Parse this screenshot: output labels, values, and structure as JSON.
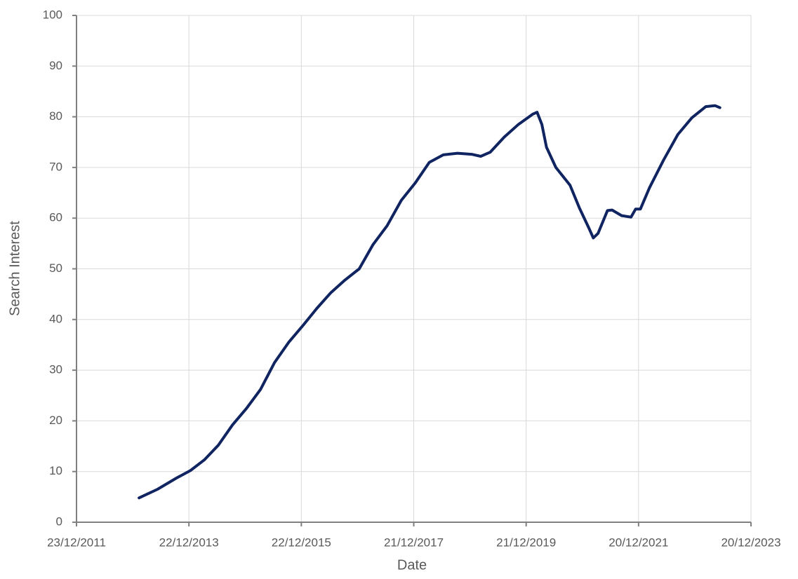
{
  "chart_data": {
    "type": "line",
    "x_label": "Date",
    "y_label": "Search Interest",
    "x": [
      "2013-02-01",
      "2013-06-01",
      "2013-10-01",
      "2014-01-01",
      "2014-04-01",
      "2014-07-01",
      "2014-10-01",
      "2015-01-01",
      "2015-04-01",
      "2015-07-01",
      "2015-10-01",
      "2016-01-01",
      "2016-04-01",
      "2016-07-01",
      "2016-10-01",
      "2017-01-01",
      "2017-04-01",
      "2017-07-01",
      "2017-10-01",
      "2018-01-01",
      "2018-04-01",
      "2018-07-01",
      "2018-10-01",
      "2019-01-01",
      "2019-03-01",
      "2019-05-01",
      "2019-08-01",
      "2019-11-01",
      "2020-02-01",
      "2020-03-01",
      "2020-04-01",
      "2020-05-01",
      "2020-07-01",
      "2020-10-01",
      "2020-12-01",
      "2021-02-01",
      "2021-03-01",
      "2021-04-01",
      "2021-06-01",
      "2021-07-01",
      "2021-09-01",
      "2021-11-01",
      "2021-12-01",
      "2022-01-01",
      "2022-03-01",
      "2022-06-01",
      "2022-09-01",
      "2022-12-01",
      "2023-03-01",
      "2023-05-01",
      "2023-06-01"
    ],
    "series": [
      {
        "name": "Search Interest",
        "color": "#0f2460",
        "values": [
          4.8,
          6.5,
          8.7,
          10.2,
          12.3,
          15.2,
          19.2,
          22.5,
          26.2,
          31.5,
          35.5,
          38.8,
          42.2,
          45.3,
          47.8,
          50,
          54.8,
          58.5,
          63.5,
          67,
          71,
          72.5,
          72.8,
          72.6,
          72.2,
          73,
          76,
          78.5,
          80.5,
          80.9,
          78.5,
          74,
          70,
          66.5,
          62,
          58,
          56.1,
          57,
          61.5,
          61.6,
          60.5,
          60.2,
          61.8,
          61.8,
          66,
          71.5,
          76.5,
          79.8,
          82,
          82.2,
          81.8
        ]
      }
    ],
    "xlim": [
      "2011-12-23",
      "2023-12-20"
    ],
    "xticks": [
      {
        "value": "2011-12-23",
        "label": "23/12/2011"
      },
      {
        "value": "2013-12-22",
        "label": "22/12/2013"
      },
      {
        "value": "2015-12-22",
        "label": "22/12/2015"
      },
      {
        "value": "2017-12-21",
        "label": "21/12/2017"
      },
      {
        "value": "2019-12-21",
        "label": "21/12/2019"
      },
      {
        "value": "2021-12-20",
        "label": "20/12/2021"
      },
      {
        "value": "2023-12-20",
        "label": "20/12/2023"
      }
    ],
    "ylim": [
      0,
      100
    ],
    "yticks": [
      0,
      10,
      20,
      30,
      40,
      50,
      60,
      70,
      80,
      90,
      100
    ],
    "grid": true
  }
}
